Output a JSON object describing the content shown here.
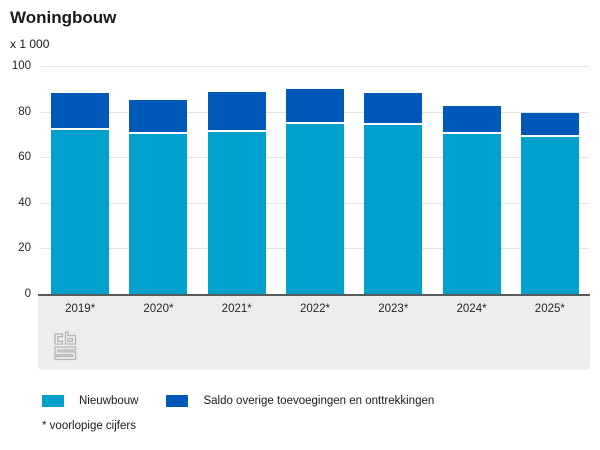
{
  "title": "Woningbouw",
  "unit_label": "x 1 000",
  "footnote": "* voorlopige cijfers",
  "logo_name": "cbs-logo",
  "colors": {
    "nieuwbouw": "#00a1cd",
    "saldo": "#0058b8",
    "axis_line": "#58595b",
    "gridline": "#e4e4e4",
    "footer_band": "#ededed",
    "logo_gray": "#b5b5b5"
  },
  "chart_data": {
    "type": "bar",
    "stacked": true,
    "title": "Woningbouw",
    "ylabel": "x 1 000",
    "categories": [
      "2019*",
      "2020*",
      "2021*",
      "2022*",
      "2023*",
      "2024*",
      "2025*"
    ],
    "series": [
      {
        "name": "Nieuwbouw",
        "color": "#00a1cd",
        "values": [
          72,
          70,
          71,
          74.5,
          74,
          70,
          69
        ]
      },
      {
        "name": "Saldo overige toevoegingen en onttrekkingen",
        "color": "#0058b8",
        "values": [
          16,
          15,
          17.5,
          15.5,
          14,
          12.5,
          10.5
        ]
      }
    ],
    "totals": [
      88,
      85,
      88.5,
      90,
      88,
      82.5,
      79.5
    ],
    "ylim": [
      0,
      100
    ],
    "yticks": [
      0,
      20,
      40,
      60,
      80,
      100
    ],
    "grid": true,
    "legend_position": "bottom"
  }
}
